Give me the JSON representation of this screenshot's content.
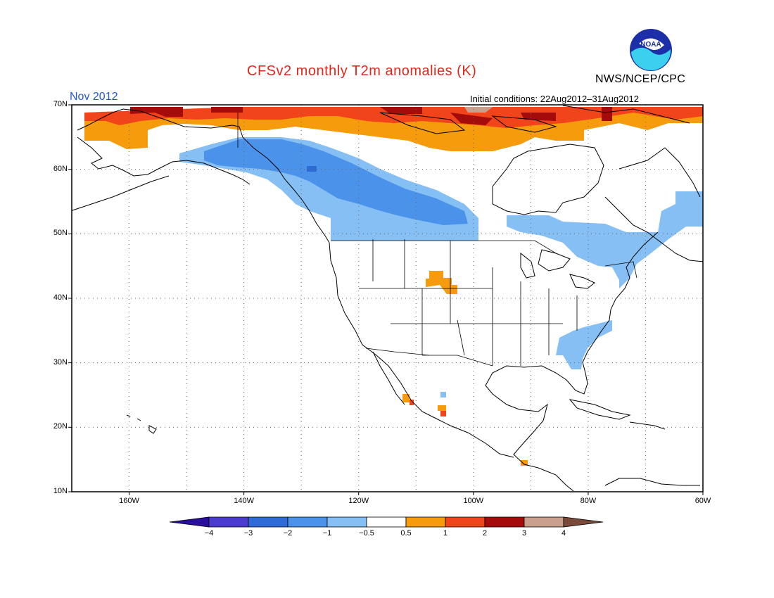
{
  "title": "CFSv2 monthly T2m anomalies (K)",
  "month": "Nov 2012",
  "agency": "NWS/NCEP/CPC",
  "logo_text": "NOAA",
  "initial_conditions": "Initial conditions: 22Aug2012–31Aug2012",
  "lat_labels": [
    "70N",
    "60N",
    "50N",
    "40N",
    "30N",
    "20N",
    "10N"
  ],
  "lon_labels": [
    "160W",
    "140W",
    "120W",
    "100W",
    "80W",
    "60W"
  ],
  "colorbar": {
    "tick_labels": [
      "−4",
      "−3",
      "−2",
      "−1",
      "−0.5",
      "0.5",
      "1",
      "2",
      "3",
      "4"
    ],
    "colors": [
      "#2a0f9c",
      "#4b3ccf",
      "#2e6bd6",
      "#4b93ea",
      "#86bff4",
      "#ffffff",
      "#f59b0c",
      "#f2441a",
      "#a40b0b",
      "#c9a08e",
      "#7a4a3a"
    ]
  },
  "map_data": {
    "lat_range": [
      10,
      70
    ],
    "lon_range": [
      -170,
      -60
    ],
    "grid_step": 10,
    "anomaly_regions": [
      {
        "label": "alaska-north-warm",
        "value": 2
      },
      {
        "label": "arctic-canada-warm",
        "value": 1
      },
      {
        "label": "western-canada-cool",
        "value": -1
      },
      {
        "label": "eastern-canada-cool",
        "value": -0.5
      },
      {
        "label": "southeast-us-cool",
        "value": -0.5
      },
      {
        "label": "wyoming-warm",
        "value": 0.5
      },
      {
        "label": "mexico-west-warm",
        "value": 1
      }
    ]
  }
}
